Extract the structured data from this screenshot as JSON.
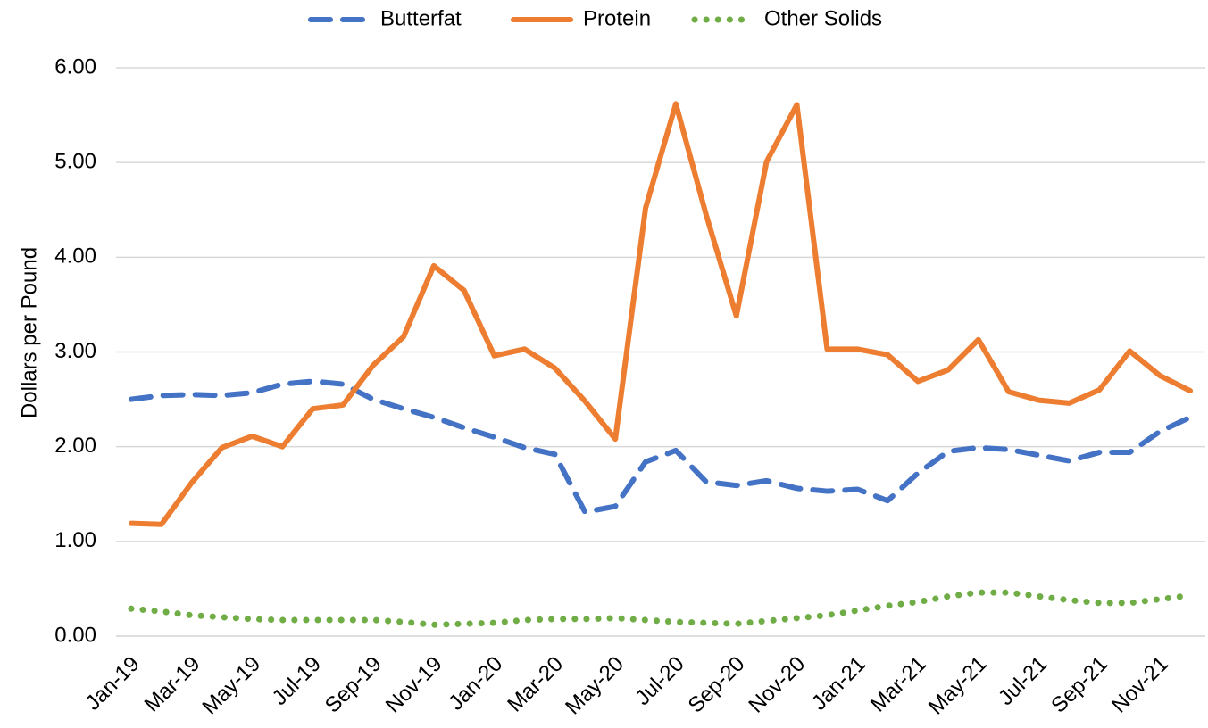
{
  "chart_data": {
    "type": "line",
    "y_label": "Dollars per Pound",
    "categories": [
      "Jan-19",
      null,
      "Mar-19",
      null,
      "May-19",
      null,
      "Jul-19",
      null,
      "Sep-19",
      null,
      "Nov-19",
      null,
      "Jan-20",
      null,
      "Mar-20",
      null,
      "May-20",
      null,
      "Jul-20",
      null,
      "Sep-20",
      null,
      "Nov-20",
      null,
      "Jan-21",
      null,
      "Mar-21",
      null,
      "May-21",
      null,
      "Jul-21",
      null,
      "Sep-21",
      null,
      "Nov-21",
      null
    ],
    "series": [
      {
        "name": "Butterfat",
        "color": "#4472c4",
        "style": "dashed",
        "values": [
          2.5,
          2.54,
          2.55,
          2.54,
          2.57,
          2.66,
          2.69,
          2.66,
          2.5,
          2.4,
          2.31,
          2.2,
          2.1,
          1.99,
          1.92,
          1.31,
          1.37,
          1.84,
          1.96,
          1.63,
          1.59,
          1.64,
          1.56,
          1.53,
          1.55,
          1.43,
          1.72,
          1.95,
          1.99,
          1.97,
          1.91,
          1.85,
          1.94,
          1.94,
          2.16,
          2.31
        ]
      },
      {
        "name": "Protein",
        "color": "#ed7d31",
        "style": "solid",
        "values": [
          1.19,
          1.18,
          1.62,
          1.99,
          2.11,
          2.0,
          2.4,
          2.44,
          2.86,
          3.16,
          3.91,
          3.65,
          2.96,
          3.03,
          2.83,
          2.48,
          2.08,
          4.52,
          5.62,
          4.45,
          3.38,
          5.01,
          5.61,
          3.03,
          3.03,
          2.97,
          2.69,
          2.81,
          3.13,
          2.58,
          2.49,
          2.46,
          2.6,
          3.01,
          2.75,
          2.59
        ]
      },
      {
        "name": "Other Solids",
        "color": "#70ad47",
        "style": "dotted",
        "values": [
          0.29,
          0.26,
          0.22,
          0.2,
          0.18,
          0.17,
          0.17,
          0.17,
          0.17,
          0.15,
          0.12,
          0.13,
          0.14,
          0.17,
          0.18,
          0.18,
          0.19,
          0.17,
          0.15,
          0.14,
          0.13,
          0.16,
          0.19,
          0.22,
          0.27,
          0.32,
          0.36,
          0.42,
          0.46,
          0.46,
          0.42,
          0.38,
          0.35,
          0.35,
          0.39,
          0.43
        ]
      }
    ],
    "ylim": [
      0,
      6
    ],
    "yticks": [
      {
        "value": 0,
        "label": "0.00"
      },
      {
        "value": 1,
        "label": "1.00"
      },
      {
        "value": 2,
        "label": "2.00"
      },
      {
        "value": 3,
        "label": "3.00"
      },
      {
        "value": 4,
        "label": "4.00"
      },
      {
        "value": 5,
        "label": "5.00"
      },
      {
        "value": 6,
        "label": "6.00"
      }
    ],
    "grid": true,
    "legend": "top"
  }
}
